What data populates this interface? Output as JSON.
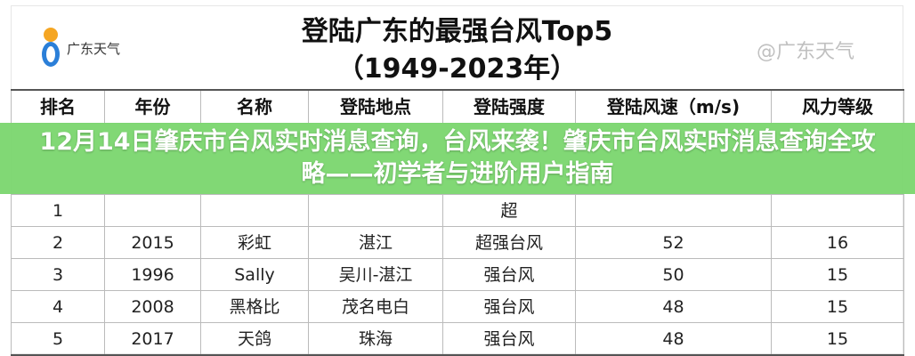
{
  "logo": {
    "text": "广东天气"
  },
  "title": {
    "line1": "登陆广东的最强台风Top5",
    "line2": "（1949-2023年）"
  },
  "table": {
    "headers": [
      "排名",
      "年份",
      "名称",
      "登陆地点",
      "登陆强度",
      "登陆风速（m/s)",
      "风力等级"
    ],
    "rows": [
      [
        "1",
        "",
        "",
        "",
        "超",
        "",
        ""
      ],
      [
        "2",
        "2015",
        "彩虹",
        "湛江",
        "超强台风",
        "52",
        "16"
      ],
      [
        "3",
        "1996",
        "Sally",
        "吴川-湛江",
        "强台风",
        "50",
        "15"
      ],
      [
        "4",
        "2008",
        "黑格比",
        "茂名电白",
        "强台风",
        "48",
        "15"
      ],
      [
        "5",
        "2017",
        "天鸽",
        "珠海",
        "强台风",
        "48",
        "15"
      ]
    ]
  },
  "watermark": "@广东天气",
  "banner": {
    "text": "12月14日肇庆市台风实时消息查询，台风来袭！肇庆市台风实时消息查询全攻略——初学者与进阶用户指南",
    "color": "#7ad66e"
  }
}
